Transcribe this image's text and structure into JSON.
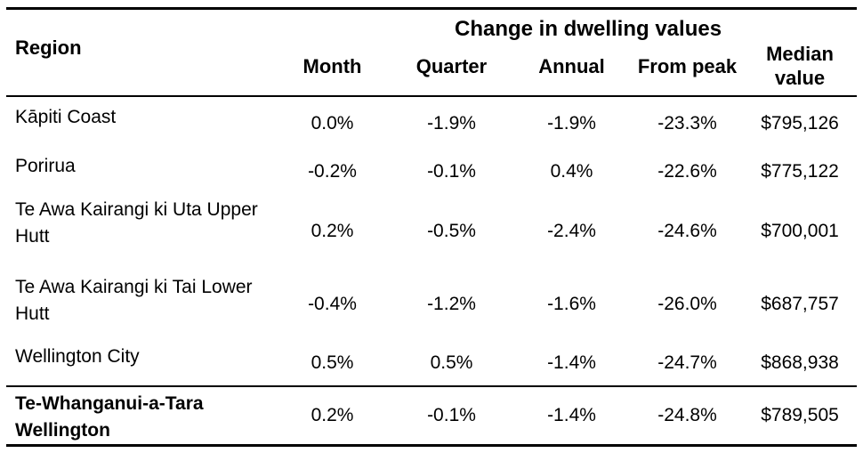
{
  "table": {
    "region_header": "Region",
    "group_header": "Change in dwelling values",
    "columns": [
      "Month",
      "Quarter",
      "Annual",
      "From peak",
      "Median value"
    ],
    "rows": [
      {
        "region": "Kāpiti Coast",
        "month": "0.0%",
        "quarter": "-1.9%",
        "annual": "-1.9%",
        "from_peak": "-23.3%",
        "median_value": "$795,126"
      },
      {
        "region": "Porirua",
        "month": "-0.2%",
        "quarter": "-0.1%",
        "annual": "0.4%",
        "from_peak": "-22.6%",
        "median_value": "$775,122"
      },
      {
        "region": "Te Awa Kairangi ki Uta Upper Hutt",
        "month": "0.2%",
        "quarter": "-0.5%",
        "annual": "-2.4%",
        "from_peak": "-24.6%",
        "median_value": "$700,001"
      },
      {
        "region": "Te Awa Kairangi ki Tai Lower Hutt",
        "month": "-0.4%",
        "quarter": "-1.2%",
        "annual": "-1.6%",
        "from_peak": "-26.0%",
        "median_value": "$687,757"
      },
      {
        "region": "Wellington City",
        "month": "0.5%",
        "quarter": "0.5%",
        "annual": "-1.4%",
        "from_peak": "-24.7%",
        "median_value": "$868,938"
      },
      {
        "region": "Te-Whanganui-a-Tara Wellington",
        "month": "0.2%",
        "quarter": "-0.1%",
        "annual": "-1.4%",
        "from_peak": "-24.8%",
        "median_value": "$789,505"
      }
    ],
    "colors": {
      "text": "#000000",
      "rule": "#000000",
      "background": "#ffffff"
    }
  }
}
